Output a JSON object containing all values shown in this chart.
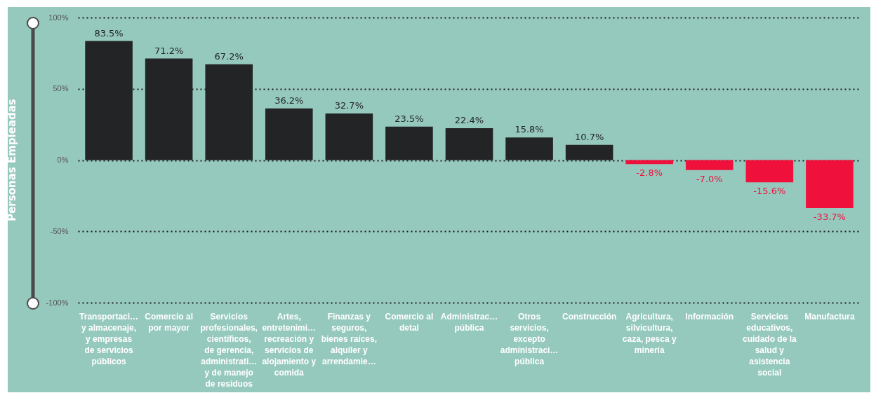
{
  "chart_data": {
    "type": "bar",
    "ylabel": "Personas Empleadas",
    "categories": [
      "Transportaci… y almacenaje, y empresas de servicios públicos",
      "Comercio al por mayor",
      "Servicios profesionales, científicos, de gerencia, administrati… y de manejo de residuos",
      "Artes, entretenimi… recreación y servicios de alojamiento y comida",
      "Finanzas y seguros, bienes raíces, alquiler y arrendamie…",
      "Comercio al detal",
      "Administrac… pública",
      "Otros servicios, excepto administraci… pública",
      "Construcción",
      "Agricultura, silvicultura, caza, pesca y minería",
      "Información",
      "Servicios educativos, cuidado de la salud y asistencia social",
      "Manufactura"
    ],
    "values": [
      83.5,
      71.2,
      67.2,
      36.2,
      32.7,
      23.5,
      22.4,
      15.8,
      10.7,
      -2.8,
      -7.0,
      -15.6,
      -33.7
    ],
    "value_labels": [
      "83.5%",
      "71.2%",
      "67.2%",
      "36.2%",
      "32.7%",
      "23.5%",
      "22.4%",
      "15.8%",
      "10.7%",
      "-2.8%",
      "-7.0%",
      "-15.6%",
      "-33.7%"
    ],
    "colors": [
      "#222426",
      "#222426",
      "#222426",
      "#222426",
      "#222426",
      "#222426",
      "#222426",
      "#222426",
      "#222426",
      "#f0103c",
      "#f0103c",
      "#f0103c",
      "#f0103c"
    ],
    "ylim": [
      -100,
      100
    ],
    "yticks": [
      {
        "value": -100,
        "label": "-100%"
      },
      {
        "value": -50,
        "label": "-50%"
      },
      {
        "value": 0,
        "label": "0%"
      },
      {
        "value": 50,
        "label": "50%"
      },
      {
        "value": 100,
        "label": "100%"
      }
    ],
    "grid": "y"
  }
}
